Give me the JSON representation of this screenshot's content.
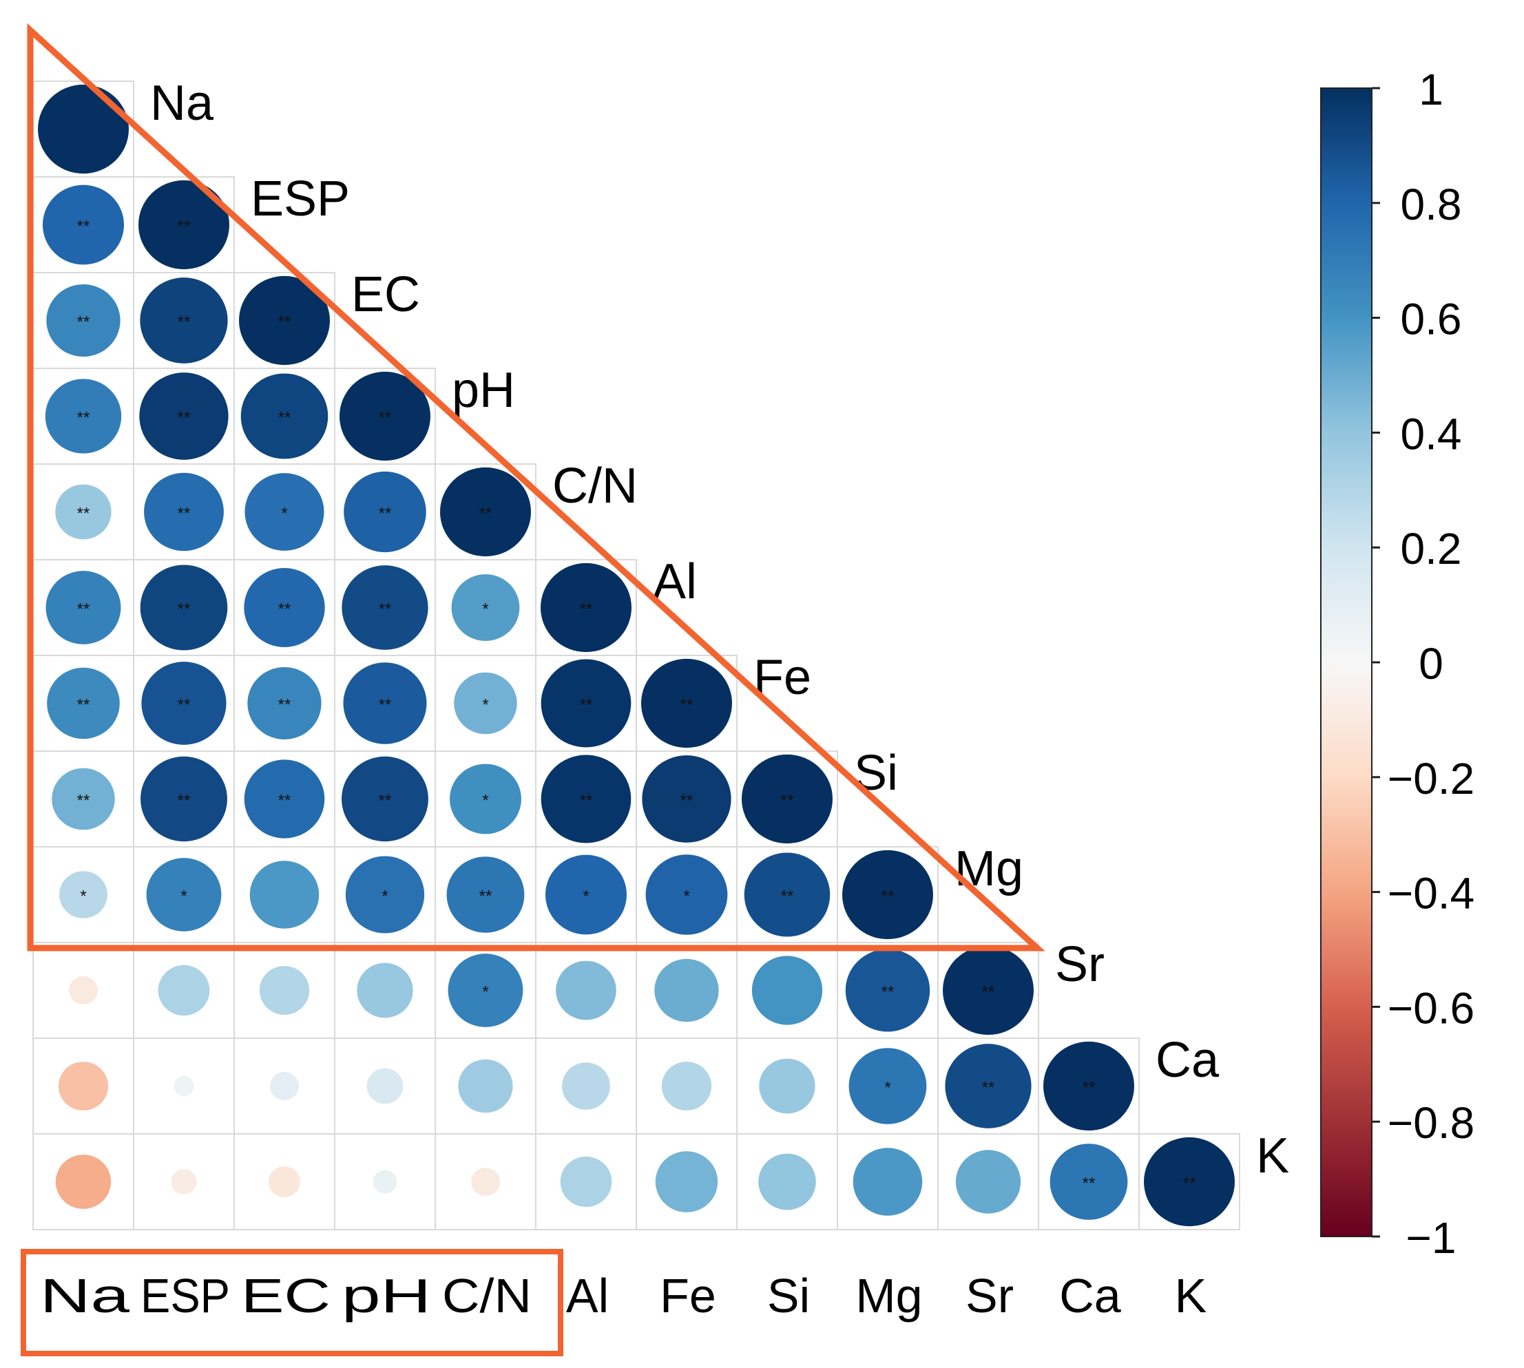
{
  "chart_data": {
    "type": "heatmap",
    "subtype": "correlation-circles-lower-triangle",
    "variables": [
      "Na",
      "ESP",
      "EC",
      "pH",
      "C/N",
      "Al",
      "Fe",
      "Si",
      "Mg",
      "Sr",
      "Ca",
      "K"
    ],
    "matrix": [
      [
        1.0
      ],
      [
        0.8,
        1.0
      ],
      [
        0.66,
        0.93,
        1.0
      ],
      [
        0.7,
        0.96,
        0.92,
        1.0
      ],
      [
        0.38,
        0.77,
        0.76,
        0.82,
        1.0
      ],
      [
        0.68,
        0.92,
        0.79,
        0.9,
        0.56,
        1.0
      ],
      [
        0.64,
        0.87,
        0.66,
        0.84,
        0.48,
        0.98,
        1.0
      ],
      [
        0.48,
        0.91,
        0.78,
        0.91,
        0.62,
        0.98,
        0.96,
        1.0
      ],
      [
        0.28,
        0.68,
        0.58,
        0.75,
        0.73,
        0.8,
        0.81,
        0.89,
        1.0
      ],
      [
        -0.1,
        0.32,
        0.3,
        0.38,
        0.68,
        0.44,
        0.5,
        0.6,
        0.86,
        1.0
      ],
      [
        -0.3,
        0.05,
        0.1,
        0.16,
        0.36,
        0.28,
        0.3,
        0.38,
        0.73,
        0.9,
        1.0
      ],
      [
        -0.37,
        -0.08,
        -0.12,
        0.07,
        -0.1,
        0.32,
        0.47,
        0.4,
        0.58,
        0.51,
        0.73,
        1.0
      ]
    ],
    "significance": [
      [
        ""
      ],
      [
        "**",
        "**"
      ],
      [
        "**",
        "**",
        "**"
      ],
      [
        "**",
        "**",
        "**",
        "**"
      ],
      [
        "**",
        "**",
        "*",
        "**",
        "**"
      ],
      [
        "**",
        "**",
        "**",
        "**",
        "*",
        "**"
      ],
      [
        "**",
        "**",
        "**",
        "**",
        "*",
        "**",
        "**"
      ],
      [
        "**",
        "**",
        "**",
        "**",
        "*",
        "**",
        "**",
        "**"
      ],
      [
        "*",
        "*",
        "",
        "*",
        "**",
        "*",
        "*",
        "**",
        "**"
      ],
      [
        "",
        "",
        "",
        "",
        "*",
        "",
        "",
        "",
        "**",
        "**"
      ],
      [
        "",
        "",
        "",
        "",
        "",
        "",
        "",
        "",
        "*",
        "**",
        "**"
      ],
      [
        "",
        "",
        "",
        "",
        "",
        "",
        "",
        "",
        "",
        "",
        "**",
        "**"
      ]
    ],
    "colorbar": {
      "range": [
        -1,
        1
      ],
      "ticks": [
        "1",
        "0.8",
        "0.6",
        "0.4",
        "0.2",
        "0",
        "−0.2",
        "−0.4",
        "−0.6",
        "−0.8",
        "−1"
      ],
      "colors": {
        "neg_strong": "#67001f",
        "neg_mid": "#d6604d",
        "neg_light": "#f4a582",
        "neg_pale": "#fddbc7",
        "zero": "#f7f7f7",
        "pos_pale": "#d1e5f0",
        "pos_light": "#92c5de",
        "pos_mid": "#4393c3",
        "pos_strong": "#2166ac",
        "pos_max": "#053061"
      }
    },
    "highlight_color": "#f26430",
    "grid_color": "#d9d9d9"
  }
}
